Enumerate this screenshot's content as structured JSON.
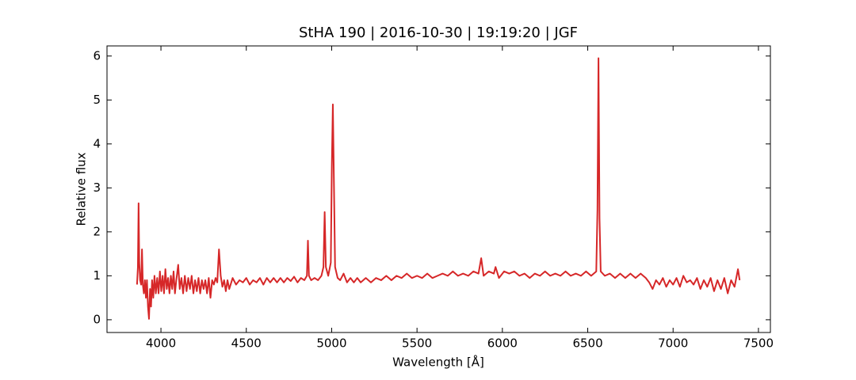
{
  "chart_data": {
    "type": "line",
    "title": "StHA 190 | 2016-10-30 | 19:19:20 | JGF",
    "x_label": "Wavelength [Å]",
    "y_label": "Relative flux",
    "color": "#d62728",
    "xlim": [
      3684,
      7570
    ],
    "ylim": [
      -0.29,
      6.23
    ],
    "xticks": [
      4000,
      4500,
      5000,
      5500,
      6000,
      6500,
      7000,
      7500
    ],
    "yticks": [
      0,
      1,
      2,
      3,
      4,
      5,
      6
    ],
    "x": [
      3860,
      3865,
      3869,
      3873,
      3878,
      3884,
      3889,
      3894,
      3900,
      3906,
      3912,
      3918,
      3924,
      3930,
      3936,
      3942,
      3948,
      3955,
      3962,
      3970,
      3978,
      3986,
      3994,
      4002,
      4010,
      4018,
      4026,
      4034,
      4042,
      4050,
      4058,
      4066,
      4074,
      4082,
      4090,
      4101,
      4110,
      4120,
      4130,
      4140,
      4150,
      4160,
      4170,
      4180,
      4190,
      4200,
      4210,
      4220,
      4230,
      4240,
      4250,
      4260,
      4270,
      4280,
      4290,
      4300,
      4310,
      4320,
      4330,
      4340,
      4350,
      4360,
      4370,
      4380,
      4390,
      4400,
      4420,
      4440,
      4460,
      4480,
      4500,
      4520,
      4540,
      4560,
      4580,
      4600,
      4620,
      4640,
      4660,
      4680,
      4700,
      4720,
      4740,
      4760,
      4780,
      4800,
      4820,
      4840,
      4855,
      4861,
      4867,
      4880,
      4900,
      4920,
      4940,
      4952,
      4959,
      4966,
      4980,
      4995,
      5001,
      5007,
      5013,
      5020,
      5035,
      5050,
      5070,
      5090,
      5110,
      5130,
      5150,
      5170,
      5200,
      5230,
      5260,
      5290,
      5320,
      5350,
      5380,
      5410,
      5440,
      5470,
      5500,
      5530,
      5560,
      5590,
      5620,
      5650,
      5680,
      5710,
      5740,
      5770,
      5800,
      5830,
      5860,
      5876,
      5890,
      5920,
      5950,
      5960,
      5980,
      6010,
      6040,
      6070,
      6100,
      6130,
      6160,
      6190,
      6220,
      6250,
      6280,
      6310,
      6340,
      6370,
      6400,
      6430,
      6460,
      6490,
      6520,
      6550,
      6557,
      6563,
      6569,
      6576,
      6600,
      6630,
      6660,
      6690,
      6720,
      6750,
      6780,
      6810,
      6840,
      6860,
      6880,
      6900,
      6920,
      6940,
      6960,
      6980,
      7000,
      7020,
      7040,
      7060,
      7080,
      7100,
      7120,
      7140,
      7160,
      7180,
      7200,
      7220,
      7240,
      7260,
      7280,
      7300,
      7320,
      7340,
      7360,
      7380,
      7390
    ],
    "values": [
      0.8,
      1.2,
      2.65,
      1.3,
      0.9,
      0.8,
      1.6,
      0.8,
      0.6,
      0.9,
      0.5,
      0.9,
      0.3,
      0.02,
      0.7,
      0.3,
      0.9,
      0.5,
      1.0,
      0.6,
      0.95,
      0.6,
      1.1,
      0.65,
      1.0,
      0.6,
      1.15,
      0.7,
      0.95,
      0.6,
      1.0,
      0.7,
      1.1,
      0.6,
      0.9,
      1.25,
      0.7,
      0.95,
      0.6,
      1.0,
      0.65,
      0.95,
      0.7,
      1.0,
      0.6,
      0.9,
      0.65,
      0.95,
      0.6,
      0.9,
      0.7,
      0.9,
      0.6,
      0.95,
      0.5,
      0.9,
      0.8,
      0.95,
      0.85,
      1.6,
      1.0,
      0.75,
      0.9,
      0.65,
      0.9,
      0.7,
      0.95,
      0.8,
      0.9,
      0.85,
      0.95,
      0.8,
      0.9,
      0.85,
      0.95,
      0.8,
      0.95,
      0.85,
      0.95,
      0.85,
      0.95,
      0.85,
      0.95,
      0.88,
      0.98,
      0.85,
      0.95,
      0.9,
      1.0,
      1.8,
      1.0,
      0.9,
      0.95,
      0.9,
      1.0,
      1.2,
      2.45,
      1.2,
      1.0,
      1.3,
      3.5,
      4.9,
      3.2,
      1.2,
      0.95,
      0.9,
      1.05,
      0.85,
      0.95,
      0.85,
      0.95,
      0.85,
      0.95,
      0.85,
      0.95,
      0.9,
      1.0,
      0.9,
      1.0,
      0.95,
      1.05,
      0.95,
      1.0,
      0.95,
      1.05,
      0.95,
      1.0,
      1.05,
      1.0,
      1.1,
      1.0,
      1.05,
      1.0,
      1.1,
      1.05,
      1.4,
      1.0,
      1.1,
      1.05,
      1.2,
      0.95,
      1.1,
      1.05,
      1.1,
      1.0,
      1.05,
      0.95,
      1.05,
      1.0,
      1.1,
      1.0,
      1.05,
      1.0,
      1.1,
      1.0,
      1.05,
      1.0,
      1.1,
      1.0,
      1.1,
      2.5,
      5.95,
      2.3,
      1.1,
      1.0,
      1.05,
      0.95,
      1.05,
      0.95,
      1.05,
      0.95,
      1.05,
      0.95,
      0.85,
      0.7,
      0.9,
      0.8,
      0.95,
      0.75,
      0.9,
      0.8,
      0.95,
      0.75,
      1.0,
      0.85,
      0.9,
      0.8,
      0.95,
      0.7,
      0.9,
      0.75,
      0.95,
      0.65,
      0.9,
      0.7,
      0.95,
      0.6,
      0.9,
      0.75,
      1.15,
      0.9
    ]
  }
}
